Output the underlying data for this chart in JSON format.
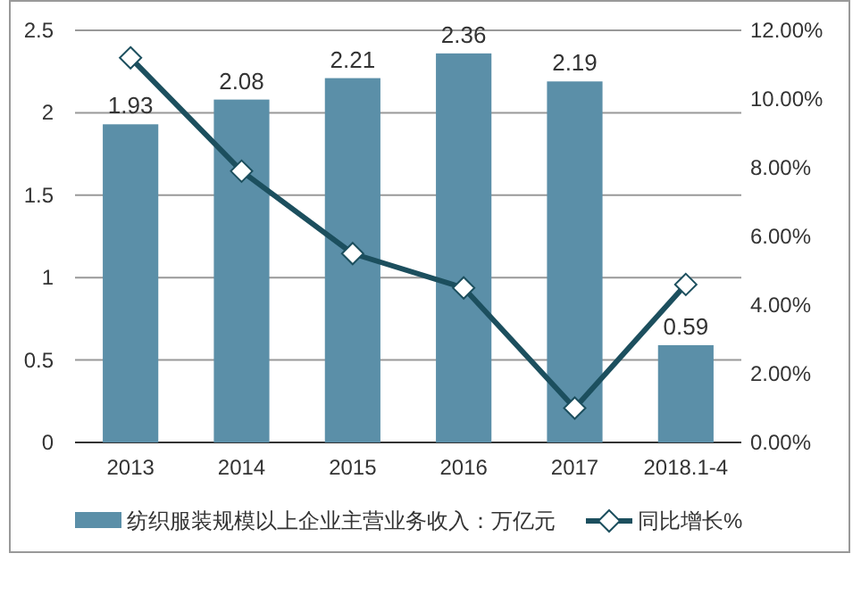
{
  "chart_data": {
    "type": "bar",
    "categories": [
      "2013",
      "2014",
      "2015",
      "2016",
      "2017",
      "2018.1-4"
    ],
    "series": [
      {
        "name": "纺织服装规模以上企业主营业务收入：万亿元",
        "color": "#5b8fa8",
        "values": [
          1.93,
          2.08,
          2.21,
          2.36,
          2.19,
          0.59
        ],
        "value_labels": [
          "1.93",
          "2.08",
          "2.21",
          "2.36",
          "2.19",
          "0.59"
        ]
      },
      {
        "name": "同比增长%",
        "type": "line",
        "axis": "y2",
        "color": "#1c4f5e",
        "marker": "diamond",
        "values": [
          11.2,
          7.9,
          5.5,
          4.5,
          1.0,
          4.6
        ]
      }
    ],
    "ylim": [
      0,
      2.5
    ],
    "yticks": [
      0,
      0.5,
      1,
      1.5,
      2,
      2.5
    ],
    "y2lim": [
      0,
      12
    ],
    "y2ticks": [
      {
        "value": 0,
        "label": "0.00%"
      },
      {
        "value": 2,
        "label": "2.00%"
      },
      {
        "value": 4,
        "label": "4.00%"
      },
      {
        "value": 6,
        "label": "6.00%"
      },
      {
        "value": 8,
        "label": "8.00%"
      },
      {
        "value": 10,
        "label": "10.00%"
      },
      {
        "value": 12,
        "label": "12.00%"
      }
    ],
    "grid": "y",
    "legend": "bottom"
  }
}
